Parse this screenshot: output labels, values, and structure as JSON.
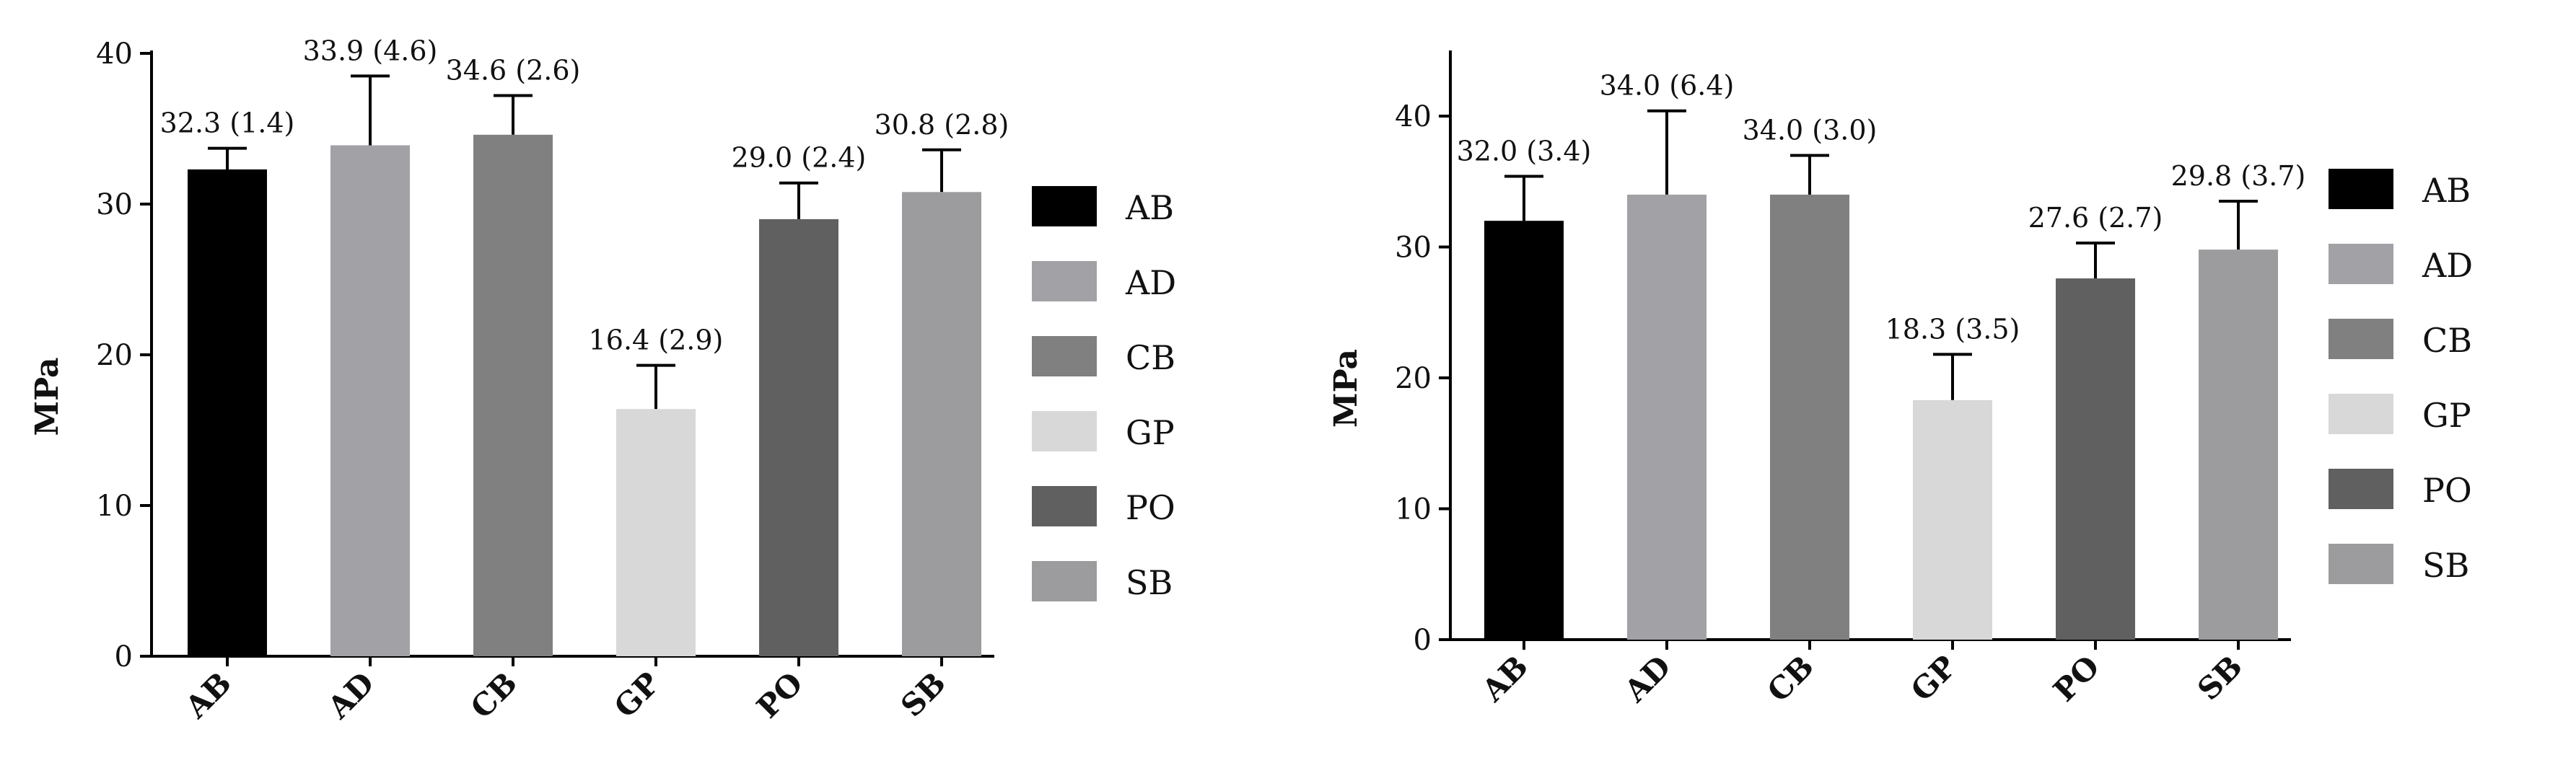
{
  "colors": {
    "AB": "#000000",
    "AD": "#a2a1a6",
    "CB": "#808080",
    "GP": "#d8d8d8",
    "PO": "#606060",
    "SB": "#9c9c9e"
  },
  "chart_data": [
    {
      "type": "bar",
      "title": "",
      "xlabel": "",
      "ylabel": "MPa",
      "ylim": [
        0,
        40
      ],
      "yticks": [
        0,
        10,
        20,
        30,
        40
      ],
      "ytick_labels": [
        "0",
        "10",
        "20",
        "30",
        "40"
      ],
      "categories": [
        "AB",
        "AD",
        "CB",
        "GP",
        "PO",
        "SB"
      ],
      "values": [
        32.3,
        33.9,
        34.6,
        16.4,
        29.0,
        30.8
      ],
      "errors": [
        1.4,
        4.6,
        2.6,
        2.9,
        2.4,
        2.8
      ],
      "data_labels": [
        "32.3 (1.4)",
        "33.9 (4.6)",
        "34.6 (2.6)",
        "16.4 (2.9)",
        "29.0 (2.4)",
        "30.8 (2.8)"
      ],
      "legend": [
        "AB",
        "AD",
        "CB",
        "GP",
        "PO",
        "SB"
      ],
      "legend_position": "right",
      "grid": false
    },
    {
      "type": "bar",
      "title": "",
      "xlabel": "",
      "ylabel": "MPa",
      "ylim": [
        0,
        45
      ],
      "yticks": [
        0,
        10,
        20,
        30,
        40
      ],
      "ytick_labels": [
        "0",
        "10",
        "20",
        "30",
        "40"
      ],
      "categories": [
        "AB",
        "AD",
        "CB",
        "GP",
        "PO",
        "SB"
      ],
      "values": [
        32.0,
        34.0,
        34.0,
        18.3,
        27.6,
        29.8
      ],
      "errors": [
        3.4,
        6.4,
        3.0,
        3.5,
        2.7,
        3.7
      ],
      "data_labels": [
        "32.0 (3.4)",
        "34.0 (6.4)",
        "34.0 (3.0)",
        "18.3 (3.5)",
        "27.6 (2.7)",
        "29.8 (3.7)"
      ],
      "legend": [
        "AB",
        "AD",
        "CB",
        "GP",
        "PO",
        "SB"
      ],
      "legend_position": "right",
      "grid": false
    }
  ]
}
